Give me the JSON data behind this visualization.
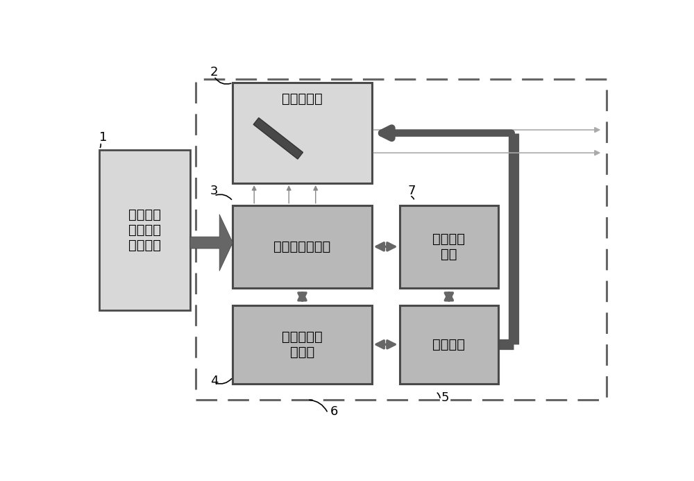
{
  "bg_color": "#ffffff",
  "box_fill_light": "#d8d8d8",
  "box_fill_dark": "#b8b8b8",
  "box_edge": "#4a4a4a",
  "arrow_color": "#666666",
  "dark_arrow": "#555555",
  "dashed_color": "#666666",
  "label1": "太阳能风\n力二合一\n电源单元",
  "label2": "扫描镜单元",
  "label3": "激光管阵列单元",
  "label4": "激光管驱动\n电源组",
  "label5": "测控单元",
  "label6": "激光热控\n单元",
  "num1": "1",
  "num2": "2",
  "num3": "3",
  "num4": "4",
  "num5": "5",
  "num6": "6",
  "num7": "7",
  "font_size": 14,
  "font_size_num": 13,
  "fig_w": 10.0,
  "fig_h": 6.93,
  "dpi": 100
}
